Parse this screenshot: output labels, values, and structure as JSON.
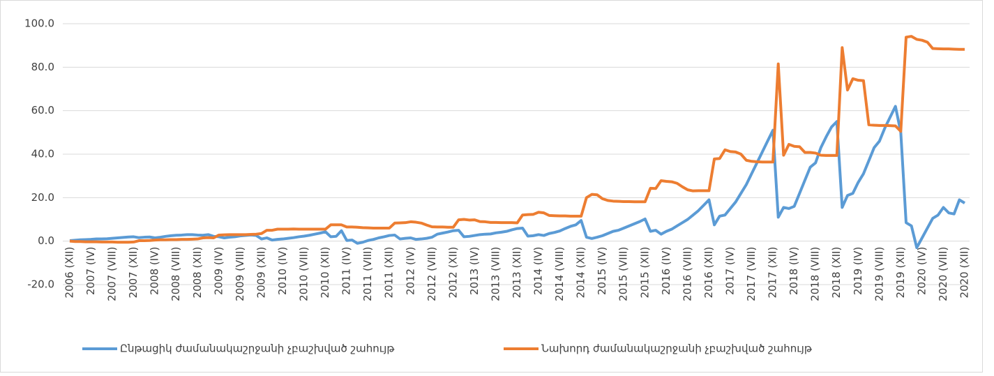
{
  "chart_data": {
    "type": "line",
    "categories": [
      "2006 (XII)",
      null,
      null,
      null,
      "2007 (IV)",
      null,
      null,
      null,
      "2007 (VIII)",
      null,
      null,
      null,
      "2007 (XII)",
      null,
      null,
      null,
      "2008 (IV)",
      null,
      null,
      null,
      "2008 (VIII)",
      null,
      null,
      null,
      "2008 (XII)",
      null,
      null,
      null,
      "2009 (IV)",
      null,
      null,
      null,
      "2009 (VIII)",
      null,
      null,
      null,
      "2009 (XII)",
      null,
      null,
      null,
      "2010 (IV)",
      null,
      null,
      null,
      "2010 (VIII)",
      null,
      null,
      null,
      "2010 (XII)",
      null,
      null,
      null,
      "2011 (IV)",
      null,
      null,
      null,
      "2011 (VIII)",
      null,
      null,
      null,
      "2011 (XII)",
      null,
      null,
      null,
      "2012 (IV)",
      null,
      null,
      null,
      "2012 (VIII)",
      null,
      null,
      null,
      "2012 (XII)",
      null,
      null,
      null,
      "2013 (IV)",
      null,
      null,
      null,
      "2013 (VIII)",
      null,
      null,
      null,
      "2013 (XII)",
      null,
      null,
      null,
      "2014 (IV)",
      null,
      null,
      null,
      "2014 (VIII)",
      null,
      null,
      null,
      "2014 (XII)",
      null,
      null,
      null,
      "2015 (IV)",
      null,
      null,
      null,
      "2015 (VIII)",
      null,
      null,
      null,
      "2015 (XII)",
      null,
      null,
      null,
      "2016 (IV)",
      null,
      null,
      null,
      "2016 (VIII)",
      null,
      null,
      null,
      "2016 (XII)",
      null,
      null,
      null,
      "2017 (IV)",
      null,
      null,
      null,
      "2017 (VIII)",
      null,
      null,
      null,
      "2017 (XII)",
      null,
      null,
      null,
      "2018 (IV)",
      null,
      null,
      null,
      "2018 (VIII)",
      null,
      null,
      null,
      "2018 (XII)",
      null,
      null,
      null,
      "2019 (IV)",
      null,
      null,
      null,
      "2019 (VIII)",
      null,
      null,
      null,
      "2019 (XII)",
      null,
      null,
      null,
      "2020 (IV)",
      null,
      null,
      null,
      "2020 (VIII)",
      null,
      null,
      null,
      "2020 (XII)"
    ],
    "series": [
      {
        "name": "Ընթացիկ ժամանակաշրջանի չբաշխված շահույթ",
        "color": "#5b9bd5",
        "values": [
          0.2,
          0.4,
          0.6,
          0.7,
          0.8,
          1.0,
          1.0,
          1.1,
          1.3,
          1.5,
          1.7,
          1.9,
          2.0,
          1.6,
          1.8,
          1.9,
          1.5,
          1.8,
          2.2,
          2.5,
          2.7,
          2.8,
          3.0,
          3.0,
          2.8,
          2.7,
          3.0,
          2.2,
          2.0,
          1.5,
          1.8,
          2.0,
          2.4,
          2.6,
          2.8,
          2.6,
          1.0,
          1.5,
          0.5,
          0.8,
          1.0,
          1.3,
          1.6,
          2.0,
          2.3,
          2.7,
          3.2,
          3.7,
          4.3,
          2.0,
          2.2,
          4.8,
          0.3,
          0.5,
          -1.0,
          -0.5,
          0.3,
          0.8,
          1.5,
          2.0,
          2.6,
          2.8,
          1.0,
          1.3,
          1.5,
          0.8,
          1.0,
          1.3,
          1.8,
          3.2,
          3.7,
          4.2,
          4.8,
          5.0,
          2.0,
          2.2,
          2.6,
          3.0,
          3.2,
          3.3,
          3.8,
          4.1,
          4.5,
          5.2,
          5.8,
          6.0,
          2.3,
          2.5,
          3.0,
          2.6,
          3.5,
          4.0,
          4.7,
          5.8,
          6.8,
          7.5,
          9.5,
          1.8,
          1.2,
          1.8,
          2.5,
          3.5,
          4.5,
          5.0,
          6.0,
          7.0,
          8.0,
          9.0,
          10.2,
          4.5,
          5.0,
          3.2,
          4.5,
          5.5,
          7.0,
          8.5,
          10.0,
          12.0,
          14.0,
          16.5,
          19.0,
          7.5,
          11.5,
          12.0,
          15.0,
          18.0,
          22.0,
          26.0,
          31.0,
          36.0,
          41.0,
          46.0,
          51.0,
          11.0,
          15.5,
          15.0,
          16.0,
          22.0,
          28.0,
          34.0,
          36.0,
          43.0,
          48.0,
          52.5,
          55.0,
          15.5,
          21.0,
          22.0,
          27.0,
          31.0,
          37.0,
          43.0,
          46.0,
          52.0,
          57.0,
          62.0,
          50.0,
          8.5,
          7.0,
          -3.0,
          1.5,
          6.0,
          10.5,
          12.0,
          15.5,
          13.0,
          12.5,
          19.0,
          17.5
        ]
      },
      {
        "name": "Նախորդ ժամանակաշրջանի չբաշխված շահույթ",
        "color": "#ed7d31",
        "values": [
          0.0,
          -0.2,
          -0.2,
          -0.3,
          -0.3,
          -0.3,
          -0.4,
          -0.4,
          -0.4,
          -0.5,
          -0.5,
          -0.5,
          -0.4,
          0.2,
          0.2,
          0.3,
          0.5,
          0.6,
          0.6,
          0.7,
          0.7,
          0.8,
          0.8,
          0.9,
          1.0,
          1.5,
          1.6,
          1.5,
          2.8,
          2.9,
          3.0,
          3.0,
          3.0,
          3.0,
          3.1,
          3.2,
          3.5,
          5.0,
          5.0,
          5.5,
          5.5,
          5.5,
          5.6,
          5.5,
          5.5,
          5.5,
          5.5,
          5.5,
          5.5,
          7.5,
          7.5,
          7.5,
          6.5,
          6.5,
          6.4,
          6.2,
          6.1,
          6.0,
          6.0,
          6.0,
          6.0,
          8.3,
          8.4,
          8.5,
          8.9,
          8.7,
          8.3,
          7.4,
          6.6,
          6.5,
          6.5,
          6.4,
          6.4,
          9.8,
          10.0,
          9.7,
          9.8,
          9.0,
          8.9,
          8.6,
          8.6,
          8.5,
          8.5,
          8.5,
          8.4,
          12.0,
          12.2,
          12.3,
          13.3,
          13.0,
          11.8,
          11.7,
          11.6,
          11.6,
          11.5,
          11.5,
          11.5,
          20.0,
          21.5,
          21.3,
          19.5,
          18.7,
          18.4,
          18.3,
          18.2,
          18.2,
          18.1,
          18.1,
          18.1,
          24.3,
          24.2,
          27.8,
          27.5,
          27.3,
          26.6,
          25.0,
          23.6,
          23.1,
          23.2,
          23.2,
          23.2,
          37.8,
          38.0,
          42.0,
          41.2,
          41.0,
          40.0,
          37.2,
          36.7,
          36.5,
          36.4,
          36.4,
          36.4,
          81.5,
          39.5,
          44.5,
          43.6,
          43.4,
          40.8,
          40.8,
          40.5,
          39.5,
          39.4,
          39.4,
          39.4,
          89.0,
          69.5,
          74.7,
          74.0,
          73.8,
          53.5,
          53.3,
          53.2,
          53.2,
          53.1,
          53.0,
          50.5,
          93.8,
          94.2,
          92.8,
          92.4,
          91.5,
          88.6,
          88.5,
          88.4,
          88.4,
          88.3,
          88.2,
          88.2
        ]
      }
    ],
    "ylim": [
      -20,
      100
    ],
    "yticks": [
      {
        "value": -20,
        "label": "-20.0"
      },
      {
        "value": 0,
        "label": "0.0"
      },
      {
        "value": 20,
        "label": "20.0"
      },
      {
        "value": 40,
        "label": "40.0"
      },
      {
        "value": 60,
        "label": "60.0"
      },
      {
        "value": 80,
        "label": "80.0"
      },
      {
        "value": 100,
        "label": "100.0"
      }
    ],
    "grid": true,
    "legend": "bottom"
  }
}
